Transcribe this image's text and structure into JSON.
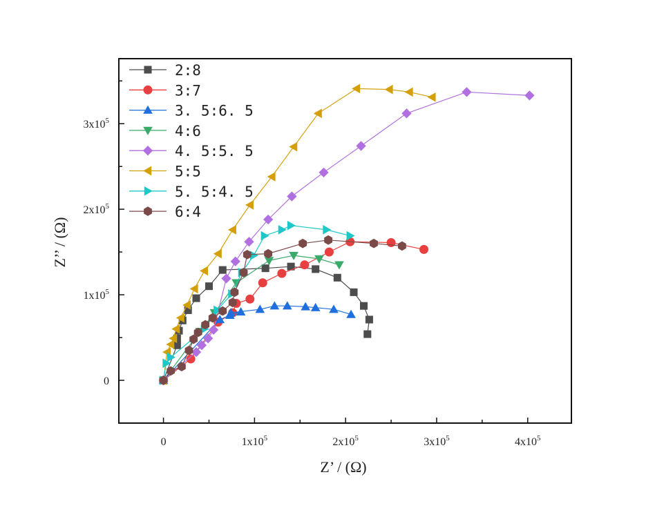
{
  "chart_data": {
    "type": "line",
    "title": "",
    "xlabel": "Z’ / (Ω)",
    "ylabel": "Z’’ / (Ω)",
    "xlim": [
      -49000,
      448000
    ],
    "ylim": [
      -50000,
      376000
    ],
    "x_ticks": [
      {
        "value": 0,
        "label": "0"
      },
      {
        "value": 100000,
        "label": "1x10",
        "exp": "5"
      },
      {
        "value": 200000,
        "label": "2x10",
        "exp": "5"
      },
      {
        "value": 300000,
        "label": "3x10",
        "exp": "5"
      },
      {
        "value": 400000,
        "label": "4x10",
        "exp": "5"
      }
    ],
    "y_ticks": [
      {
        "value": 0,
        "label": "0"
      },
      {
        "value": 100000,
        "label": "1x10",
        "exp": "5"
      },
      {
        "value": 200000,
        "label": "2x10",
        "exp": "5"
      },
      {
        "value": 300000,
        "label": "3x10",
        "exp": "5"
      }
    ],
    "grid": false,
    "legend_position": "top-left",
    "series": [
      {
        "name": "2:8",
        "color": "#4d4d4d",
        "marker": "square",
        "x": [
          0,
          15000,
          15000,
          17000,
          21000,
          27000,
          36000,
          50000,
          65000,
          112000,
          140000,
          167000,
          191000,
          209000,
          220000,
          226000,
          224000
        ],
        "y": [
          0,
          41000,
          49000,
          58000,
          70000,
          82000,
          96000,
          110000,
          129000,
          131000,
          133000,
          130000,
          120000,
          103000,
          87000,
          71000,
          54000
        ]
      },
      {
        "name": "3:7",
        "color": "#e84040",
        "marker": "circle",
        "x": [
          0,
          30000,
          60000,
          76000,
          80000,
          95000,
          109000,
          130000,
          155000,
          182000,
          205000,
          250000,
          286000
        ],
        "y": [
          0,
          25000,
          68000,
          79000,
          90000,
          95000,
          114000,
          125000,
          135000,
          150000,
          162000,
          161000,
          153000
        ]
      },
      {
        "name": "3.5:6.5",
        "color": "#1f6fde",
        "marker": "triangle-up",
        "x": [
          0,
          62000,
          73000,
          85000,
          74000,
          106000,
          122000,
          136000,
          156000,
          167000,
          187000,
          206000
        ],
        "y": [
          0,
          71000,
          76000,
          80000,
          79000,
          83000,
          87000,
          87000,
          86000,
          85000,
          83000,
          77000
        ],
        "note": "first points approximated near origin"
      },
      {
        "name": "4:6",
        "color": "#3aaa6a",
        "marker": "triangle-down",
        "x": [
          0,
          40000,
          56000,
          80000,
          116000,
          143000,
          171000,
          193000
        ],
        "y": [
          0,
          57000,
          79000,
          114000,
          140000,
          146000,
          142000,
          135000
        ]
      },
      {
        "name": "4.5:5.5",
        "color": "#b070e0",
        "marker": "diamond",
        "x": [
          0,
          36000,
          42000,
          49000,
          55000,
          69000,
          79000,
          94000,
          115000,
          141000,
          176000,
          217000,
          267000,
          333000,
          402000
        ],
        "y": [
          0,
          33000,
          41000,
          49000,
          59000,
          119000,
          139000,
          162000,
          188000,
          215000,
          243000,
          274000,
          312000,
          337000,
          333000
        ]
      },
      {
        "name": "5:5",
        "color": "#d4a00a",
        "marker": "triangle-left",
        "x": [
          0,
          4000,
          8000,
          11000,
          14000,
          19000,
          26000,
          34000,
          45000,
          60000,
          76000,
          95000,
          119000,
          143000,
          170000,
          212000,
          248000,
          270000,
          295000
        ],
        "y": [
          0,
          33000,
          42000,
          49000,
          60000,
          73000,
          88000,
          107000,
          128000,
          148000,
          176000,
          205000,
          238000,
          273000,
          312000,
          341000,
          340000,
          337000,
          331000
        ]
      },
      {
        "name": "5.5:4.5",
        "color": "#1ec8c8",
        "marker": "triangle-right",
        "x": [
          0,
          3000,
          8000,
          45000,
          59000,
          75000,
          86000,
          99000,
          111000,
          130000,
          140000,
          179000,
          205000
        ],
        "y": [
          0,
          20000,
          27000,
          60000,
          82000,
          101000,
          126000,
          146000,
          169000,
          176000,
          181000,
          176000,
          169000
        ]
      },
      {
        "name": "6:4",
        "color": "#7a4a48",
        "marker": "hexagon",
        "x": [
          0,
          8000,
          20000,
          28000,
          33000,
          38000,
          46000,
          54000,
          65000,
          76000,
          78000,
          88000,
          92000,
          115000,
          153000,
          181000,
          231000,
          262000
        ],
        "y": [
          0,
          11000,
          16000,
          35000,
          48000,
          56000,
          65000,
          73000,
          81000,
          91000,
          103000,
          126000,
          147000,
          148000,
          160000,
          164000,
          160000,
          157000
        ]
      }
    ]
  }
}
